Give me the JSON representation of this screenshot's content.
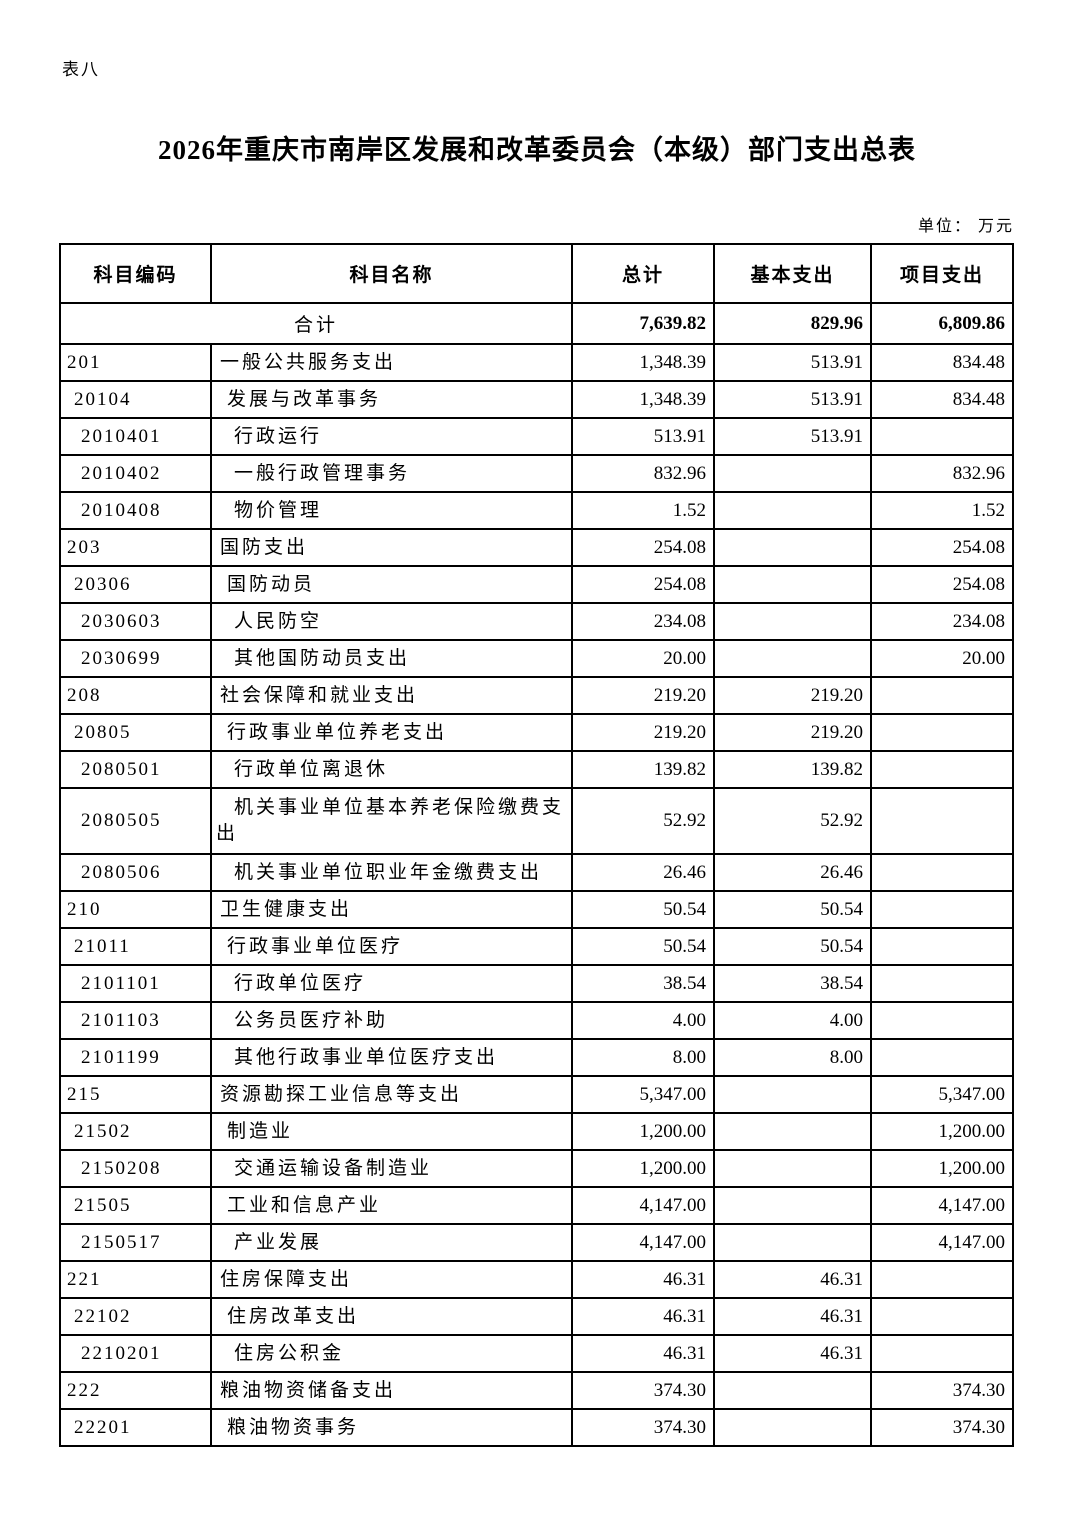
{
  "page": {
    "table_label": "表八",
    "title": "2026年重庆市南岸区发展和改革委员会（本级）部门支出总表",
    "unit_note": "单位： 万元"
  },
  "table": {
    "headers": [
      "科目编码",
      "科目名称",
      "总计",
      "基本支出",
      "项目支出"
    ],
    "total_row": {
      "label": "合计",
      "total": "7,639.82",
      "basic": "829.96",
      "project": "6,809.86"
    },
    "rows": [
      {
        "code": "201",
        "name": "一般公共服务支出",
        "total": "1,348.39",
        "basic": "513.91",
        "project": "834.48"
      },
      {
        "code": "20104",
        "name": "发展与改革事务",
        "total": "1,348.39",
        "basic": "513.91",
        "project": "834.48"
      },
      {
        "code": "2010401",
        "name": "行政运行",
        "total": "513.91",
        "basic": "513.91",
        "project": ""
      },
      {
        "code": "2010402",
        "name": "一般行政管理事务",
        "total": "832.96",
        "basic": "",
        "project": "832.96"
      },
      {
        "code": "2010408",
        "name": "物价管理",
        "total": "1.52",
        "basic": "",
        "project": "1.52"
      },
      {
        "code": "203",
        "name": "国防支出",
        "total": "254.08",
        "basic": "",
        "project": "254.08"
      },
      {
        "code": "20306",
        "name": "国防动员",
        "total": "254.08",
        "basic": "",
        "project": "254.08"
      },
      {
        "code": "2030603",
        "name": "人民防空",
        "total": "234.08",
        "basic": "",
        "project": "234.08"
      },
      {
        "code": "2030699",
        "name": "其他国防动员支出",
        "total": "20.00",
        "basic": "",
        "project": "20.00"
      },
      {
        "code": "208",
        "name": "社会保障和就业支出",
        "total": "219.20",
        "basic": "219.20",
        "project": ""
      },
      {
        "code": "20805",
        "name": "行政事业单位养老支出",
        "total": "219.20",
        "basic": "219.20",
        "project": ""
      },
      {
        "code": "2080501",
        "name": "行政单位离退休",
        "total": "139.82",
        "basic": "139.82",
        "project": ""
      },
      {
        "code": "2080505",
        "name": "机关事业单位基本养老保险缴费支出",
        "total": "52.92",
        "basic": "52.92",
        "project": ""
      },
      {
        "code": "2080506",
        "name": "机关事业单位职业年金缴费支出",
        "total": "26.46",
        "basic": "26.46",
        "project": ""
      },
      {
        "code": "210",
        "name": "卫生健康支出",
        "total": "50.54",
        "basic": "50.54",
        "project": ""
      },
      {
        "code": "21011",
        "name": "行政事业单位医疗",
        "total": "50.54",
        "basic": "50.54",
        "project": ""
      },
      {
        "code": "2101101",
        "name": "行政单位医疗",
        "total": "38.54",
        "basic": "38.54",
        "project": ""
      },
      {
        "code": "2101103",
        "name": "公务员医疗补助",
        "total": "4.00",
        "basic": "4.00",
        "project": ""
      },
      {
        "code": "2101199",
        "name": "其他行政事业单位医疗支出",
        "total": "8.00",
        "basic": "8.00",
        "project": ""
      },
      {
        "code": "215",
        "name": "资源勘探工业信息等支出",
        "total": "5,347.00",
        "basic": "",
        "project": "5,347.00"
      },
      {
        "code": "21502",
        "name": "制造业",
        "total": "1,200.00",
        "basic": "",
        "project": "1,200.00"
      },
      {
        "code": "2150208",
        "name": "交通运输设备制造业",
        "total": "1,200.00",
        "basic": "",
        "project": "1,200.00"
      },
      {
        "code": "21505",
        "name": "工业和信息产业",
        "total": "4,147.00",
        "basic": "",
        "project": "4,147.00"
      },
      {
        "code": "2150517",
        "name": "产业发展",
        "total": "4,147.00",
        "basic": "",
        "project": "4,147.00"
      },
      {
        "code": "221",
        "name": "住房保障支出",
        "total": "46.31",
        "basic": "46.31",
        "project": ""
      },
      {
        "code": "22102",
        "name": "住房改革支出",
        "total": "46.31",
        "basic": "46.31",
        "project": ""
      },
      {
        "code": "2210201",
        "name": "住房公积金",
        "total": "46.31",
        "basic": "46.31",
        "project": ""
      },
      {
        "code": "222",
        "name": "粮油物资储备支出",
        "total": "374.30",
        "basic": "",
        "project": "374.30"
      },
      {
        "code": "22201",
        "name": "粮油物资事务",
        "total": "374.30",
        "basic": "",
        "project": "374.30"
      }
    ]
  }
}
